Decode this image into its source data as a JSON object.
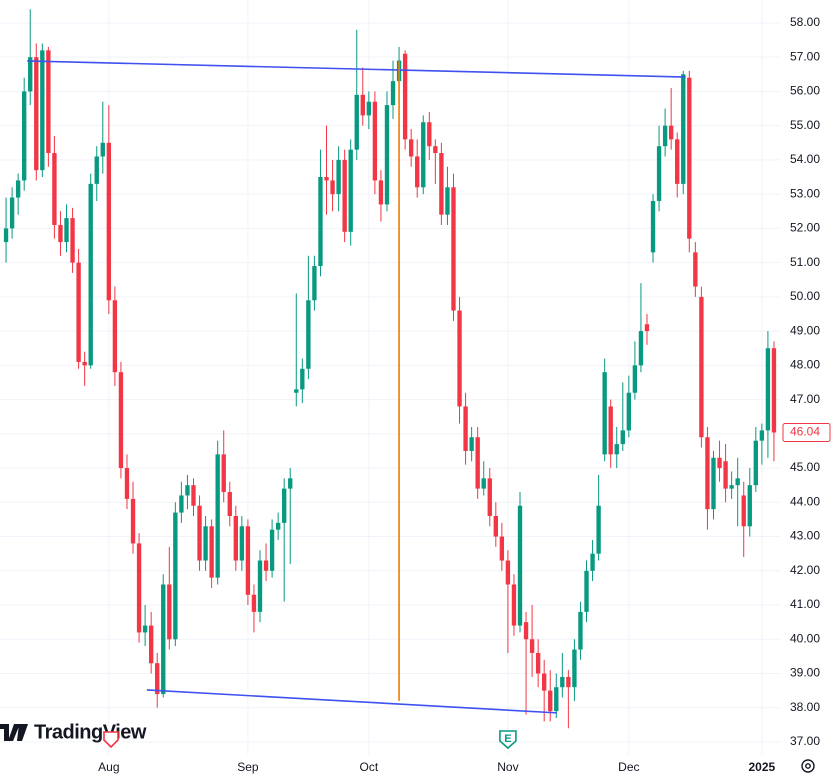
{
  "chart_data": {
    "type": "candlestick",
    "up_color": "#089981",
    "down_color": "#f23645",
    "grid": true,
    "xlim": [
      -1,
      128
    ],
    "ylim": [
      36.62,
      58.67
    ],
    "xticks": [
      {
        "value": 17,
        "label": "Aug"
      },
      {
        "value": 40,
        "label": "Sep"
      },
      {
        "value": 60,
        "label": "Oct"
      },
      {
        "value": 83,
        "label": "Nov"
      },
      {
        "value": 103,
        "label": "Dec"
      },
      {
        "value": 125,
        "label": "2025"
      }
    ],
    "yticks": [
      {
        "value": 37,
        "label": "37.00"
      },
      {
        "value": 38,
        "label": "38.00"
      },
      {
        "value": 39,
        "label": "39.00"
      },
      {
        "value": 40,
        "label": "40.00"
      },
      {
        "value": 41,
        "label": "41.00"
      },
      {
        "value": 42,
        "label": "42.00"
      },
      {
        "value": 43,
        "label": "43.00"
      },
      {
        "value": 44,
        "label": "44.00"
      },
      {
        "value": 45,
        "label": "45.00"
      },
      {
        "value": 46,
        "label": "46.00"
      },
      {
        "value": 47,
        "label": "47.00"
      },
      {
        "value": 48,
        "label": "48.00"
      },
      {
        "value": 49,
        "label": "49.00"
      },
      {
        "value": 50,
        "label": "50.00"
      },
      {
        "value": 51,
        "label": "51.00"
      },
      {
        "value": 52,
        "label": "52.00"
      },
      {
        "value": 53,
        "label": "53.00"
      },
      {
        "value": 54,
        "label": "54.00"
      },
      {
        "value": 55,
        "label": "55.00"
      },
      {
        "value": 56,
        "label": "56.00"
      },
      {
        "value": 57,
        "label": "57.00"
      },
      {
        "value": 58,
        "label": "58.00"
      }
    ],
    "x": [
      0,
      1,
      2,
      3,
      4,
      5,
      6,
      7,
      8,
      9,
      10,
      11,
      12,
      13,
      14,
      15,
      16,
      17,
      18,
      19,
      20,
      21,
      22,
      23,
      24,
      25,
      26,
      27,
      28,
      29,
      30,
      31,
      32,
      33,
      34,
      35,
      36,
      37,
      38,
      39,
      40,
      41,
      42,
      43,
      44,
      45,
      46,
      47,
      48,
      49,
      50,
      51,
      52,
      53,
      54,
      55,
      56,
      57,
      58,
      59,
      60,
      61,
      62,
      63,
      64,
      65,
      66,
      67,
      68,
      69,
      70,
      71,
      72,
      73,
      74,
      75,
      76,
      77,
      78,
      79,
      80,
      81,
      82,
      83,
      84,
      85,
      86,
      87,
      88,
      89,
      90,
      91,
      92,
      93,
      94,
      95,
      96,
      97,
      98,
      99,
      100,
      101,
      102,
      103,
      104,
      105,
      106,
      107,
      108,
      109,
      110,
      111,
      112,
      113,
      114,
      115,
      116,
      117,
      118,
      119,
      120,
      121,
      122,
      123,
      124,
      125,
      126,
      127
    ],
    "ohlc": [
      [
        51.6,
        52.9,
        51.0,
        52.0
      ],
      [
        52.0,
        53.2,
        51.7,
        52.9
      ],
      [
        52.9,
        53.6,
        52.4,
        53.4
      ],
      [
        53.4,
        56.4,
        53.1,
        56.0
      ],
      [
        56.0,
        58.4,
        55.6,
        57.0
      ],
      [
        57.0,
        57.4,
        53.4,
        53.7
      ],
      [
        53.7,
        57.4,
        53.5,
        57.2
      ],
      [
        57.2,
        57.3,
        53.8,
        54.2
      ],
      [
        54.2,
        54.7,
        51.7,
        52.1
      ],
      [
        52.1,
        52.5,
        51.2,
        51.6
      ],
      [
        51.6,
        52.7,
        51.3,
        52.3
      ],
      [
        52.3,
        52.6,
        50.7,
        51.0
      ],
      [
        51.0,
        51.4,
        47.9,
        48.1
      ],
      [
        48.1,
        48.4,
        47.4,
        48.0
      ],
      [
        48.0,
        53.6,
        47.9,
        53.3
      ],
      [
        53.3,
        54.4,
        52.8,
        54.1
      ],
      [
        54.1,
        55.7,
        53.6,
        54.5
      ],
      [
        54.5,
        55.6,
        49.5,
        49.9
      ],
      [
        49.9,
        50.3,
        47.4,
        47.8
      ],
      [
        47.8,
        48.1,
        44.7,
        45.0
      ],
      [
        45.0,
        45.4,
        43.8,
        44.1
      ],
      [
        44.1,
        44.6,
        42.5,
        42.8
      ],
      [
        42.8,
        43.1,
        39.9,
        40.2
      ],
      [
        40.2,
        41.0,
        39.8,
        40.4
      ],
      [
        40.4,
        40.8,
        39.0,
        39.3
      ],
      [
        39.3,
        39.6,
        38.0,
        38.4
      ],
      [
        38.4,
        41.9,
        38.3,
        41.6
      ],
      [
        41.6,
        42.7,
        39.7,
        40.0
      ],
      [
        40.0,
        44.0,
        39.8,
        43.7
      ],
      [
        43.7,
        44.6,
        43.4,
        44.2
      ],
      [
        44.2,
        44.8,
        43.8,
        44.5
      ],
      [
        44.5,
        44.7,
        43.6,
        43.9
      ],
      [
        43.9,
        44.2,
        42.0,
        42.3
      ],
      [
        42.3,
        43.6,
        42.0,
        43.3
      ],
      [
        43.3,
        43.5,
        41.5,
        41.8
      ],
      [
        41.8,
        45.8,
        41.6,
        45.4
      ],
      [
        45.4,
        46.1,
        44.0,
        44.3
      ],
      [
        44.3,
        44.6,
        43.3,
        43.6
      ],
      [
        43.6,
        43.9,
        42.0,
        42.3
      ],
      [
        42.3,
        43.6,
        42.0,
        43.3
      ],
      [
        43.3,
        43.5,
        41.0,
        41.3
      ],
      [
        41.3,
        41.6,
        40.2,
        40.8
      ],
      [
        40.8,
        42.6,
        40.5,
        42.3
      ],
      [
        42.3,
        42.8,
        41.7,
        42.0
      ],
      [
        42.0,
        43.5,
        41.8,
        43.2
      ],
      [
        43.2,
        43.7,
        42.9,
        43.4
      ],
      [
        43.4,
        44.7,
        41.1,
        44.4
      ],
      [
        44.4,
        45.0,
        42.2,
        44.7
      ],
      [
        47.2,
        50.1,
        46.8,
        47.3
      ],
      [
        47.3,
        48.2,
        46.9,
        47.9
      ],
      [
        47.9,
        51.2,
        47.6,
        49.9
      ],
      [
        49.9,
        51.2,
        49.6,
        50.9
      ],
      [
        50.9,
        54.3,
        50.6,
        53.5
      ],
      [
        53.5,
        55.0,
        52.4,
        53.4
      ],
      [
        53.4,
        54.0,
        52.5,
        53.0
      ],
      [
        53.0,
        54.4,
        52.5,
        54.0
      ],
      [
        54.0,
        54.3,
        51.6,
        51.9
      ],
      [
        51.9,
        54.6,
        51.5,
        54.3
      ],
      [
        54.3,
        57.8,
        54.0,
        55.9
      ],
      [
        55.9,
        56.7,
        55.0,
        55.3
      ],
      [
        55.3,
        56.0,
        54.9,
        55.7
      ],
      [
        55.7,
        56.0,
        53.0,
        53.4
      ],
      [
        53.4,
        53.7,
        52.2,
        52.7
      ],
      [
        52.7,
        56.0,
        52.5,
        55.6
      ],
      [
        55.6,
        56.9,
        55.2,
        56.3
      ],
      [
        56.3,
        57.3,
        55.8,
        56.9
      ],
      [
        57.1,
        57.2,
        54.3,
        54.6
      ],
      [
        54.6,
        54.9,
        53.8,
        54.1
      ],
      [
        54.1,
        54.6,
        52.9,
        53.2
      ],
      [
        53.2,
        55.3,
        53.0,
        55.1
      ],
      [
        55.1,
        55.4,
        54.0,
        54.4
      ],
      [
        54.4,
        54.6,
        53.3,
        54.2
      ],
      [
        54.2,
        54.5,
        52.1,
        52.4
      ],
      [
        52.4,
        53.8,
        52.1,
        53.2
      ],
      [
        53.2,
        53.6,
        49.3,
        49.6
      ],
      [
        49.6,
        50.0,
        46.3,
        46.8
      ],
      [
        46.8,
        47.2,
        45.1,
        45.5
      ],
      [
        45.5,
        46.2,
        45.2,
        45.9
      ],
      [
        45.9,
        46.2,
        44.1,
        44.4
      ],
      [
        44.4,
        45.2,
        44.2,
        44.7
      ],
      [
        44.7,
        45.0,
        43.3,
        43.6
      ],
      [
        43.6,
        44.0,
        42.7,
        43.0
      ],
      [
        43.0,
        43.4,
        42.0,
        42.3
      ],
      [
        42.3,
        42.6,
        39.6,
        41.6
      ],
      [
        41.6,
        41.9,
        40.1,
        40.4
      ],
      [
        40.4,
        44.3,
        40.2,
        43.9
      ],
      [
        40.5,
        40.8,
        37.8,
        40.0
      ],
      [
        40.0,
        41.0,
        38.9,
        39.6
      ],
      [
        39.6,
        40.0,
        38.6,
        39.0
      ],
      [
        39.0,
        39.4,
        37.6,
        38.5
      ],
      [
        38.5,
        39.1,
        37.6,
        37.9
      ],
      [
        37.9,
        39.0,
        37.7,
        38.6
      ],
      [
        38.6,
        39.6,
        38.3,
        38.9
      ],
      [
        38.9,
        39.1,
        37.4,
        38.6
      ],
      [
        38.6,
        40.0,
        38.2,
        39.7
      ],
      [
        39.7,
        41.1,
        39.4,
        40.8
      ],
      [
        40.8,
        42.3,
        40.5,
        42.0
      ],
      [
        42.0,
        42.9,
        41.7,
        42.5
      ],
      [
        42.5,
        44.8,
        42.3,
        43.9
      ],
      [
        45.4,
        48.2,
        45.2,
        47.8
      ],
      [
        46.8,
        47.0,
        45.0,
        45.4
      ],
      [
        45.4,
        46.2,
        45.0,
        45.7
      ],
      [
        45.7,
        47.5,
        45.5,
        46.1
      ],
      [
        46.1,
        47.7,
        45.9,
        47.2
      ],
      [
        47.2,
        48.7,
        47.0,
        48.0
      ],
      [
        48.0,
        50.4,
        47.8,
        49.0
      ],
      [
        49.2,
        49.5,
        48.6,
        49.0
      ],
      [
        51.3,
        53.0,
        51.0,
        52.8
      ],
      [
        52.8,
        55.0,
        52.5,
        54.4
      ],
      [
        54.4,
        55.5,
        54.1,
        55.0
      ],
      [
        55.0,
        56.1,
        54.3,
        54.6
      ],
      [
        54.6,
        54.8,
        52.9,
        53.3
      ],
      [
        53.3,
        56.6,
        53.0,
        56.5
      ],
      [
        56.4,
        56.6,
        51.3,
        51.7
      ],
      [
        51.3,
        51.6,
        50.0,
        50.3
      ],
      [
        50.0,
        50.3,
        45.6,
        45.9
      ],
      [
        45.9,
        46.2,
        43.2,
        43.8
      ],
      [
        43.8,
        45.5,
        43.5,
        45.3
      ],
      [
        45.3,
        45.8,
        44.6,
        45.0
      ],
      [
        45.2,
        45.7,
        44.0,
        44.4
      ],
      [
        44.4,
        44.9,
        44.1,
        44.5
      ],
      [
        44.5,
        45.3,
        43.3,
        44.7
      ],
      [
        44.2,
        44.6,
        42.4,
        43.3
      ],
      [
        43.3,
        45.0,
        43.0,
        44.5
      ],
      [
        44.5,
        46.2,
        44.3,
        45.8
      ],
      [
        45.8,
        46.3,
        45.1,
        46.1
      ],
      [
        46.1,
        49.0,
        45.3,
        48.5
      ],
      [
        48.5,
        48.7,
        45.2,
        46.04
      ]
    ],
    "drawings": [
      {
        "color": "#3f51f0",
        "x": [
          3.5,
          112.4
        ],
        "values": [
          56.89,
          56.42
        ]
      },
      {
        "color": "#3f51f0",
        "x": [
          23.3,
          91.1
        ],
        "values": [
          38.52,
          37.85
        ]
      },
      {
        "color": "#f57c00",
        "x": [
          65,
          65
        ],
        "values": [
          56.88,
          38.2
        ]
      }
    ],
    "last_price": {
      "value": 46.04,
      "label": "46.04",
      "color": "#f23645"
    },
    "events": [
      {
        "x": 83,
        "label": "E"
      }
    ],
    "logo": "TradingView"
  }
}
